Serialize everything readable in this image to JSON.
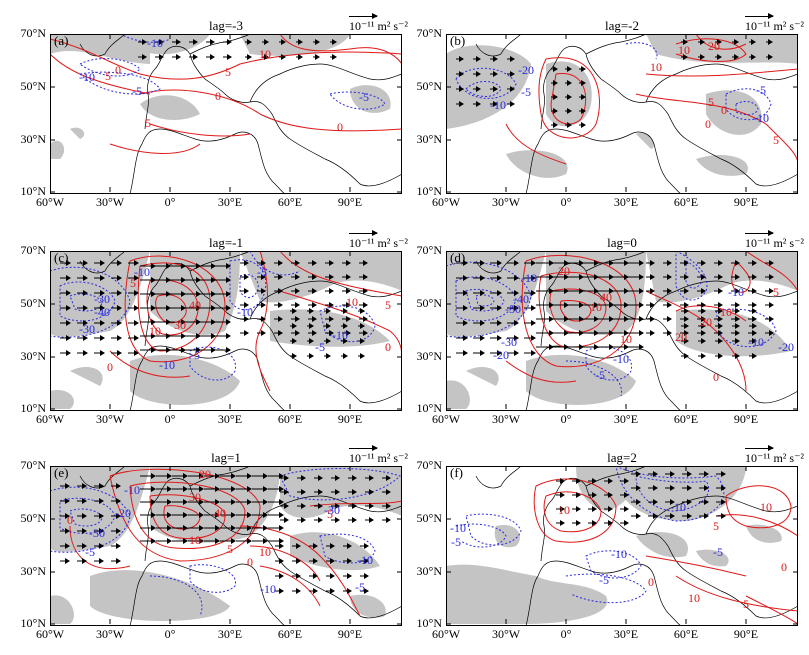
{
  "unit_label": "10⁻¹¹ m² s⁻²",
  "lat_ticks": [
    "70°N",
    "50°N",
    "30°N",
    "10°N"
  ],
  "lon_ticks": [
    "60°W",
    "30°W",
    "0°",
    "30°E",
    "60°E",
    "90°E"
  ],
  "panels": [
    {
      "label": "(a)",
      "lag": "lag=-3",
      "contours_red": [
        "0",
        "5",
        "10",
        "5",
        "0",
        "5",
        "0"
      ],
      "contours_blue": [
        "-10",
        "-10",
        "-5",
        "-5"
      ]
    },
    {
      "label": "(b)",
      "lag": "lag=-2",
      "contours_red": [
        "10",
        "20",
        "10",
        "5",
        "0",
        "0",
        "5"
      ],
      "contours_blue": [
        "-20",
        "-10",
        "-5",
        "-10",
        "-5"
      ]
    },
    {
      "label": "(c)",
      "lag": "lag=-1",
      "contours_red": [
        "5",
        "40",
        "30",
        "10",
        "0",
        "10",
        "5",
        "0"
      ],
      "contours_blue": [
        "-10",
        "-30",
        "-40",
        "-30",
        "-10",
        "-5",
        "-10",
        "-5",
        "-10",
        "-5"
      ]
    },
    {
      "label": "(d)",
      "lag": "lag=0",
      "contours_red": [
        "20",
        "40",
        "10",
        "10",
        "20",
        "20",
        "10",
        "5",
        "0"
      ],
      "contours_blue": [
        "-10",
        "-40",
        "-50",
        "-30",
        "-20",
        "-10",
        "-10",
        "-20",
        "-10",
        "-5"
      ]
    },
    {
      "label": "(e)",
      "lag": "lag=1",
      "contours_red": [
        "0",
        "20",
        "30",
        "40",
        "10",
        "5",
        "10",
        "5",
        "0"
      ],
      "contours_blue": [
        "-10",
        "-20",
        "-30",
        "-5",
        "-30",
        "-10",
        "-5",
        "-10"
      ]
    },
    {
      "label": "(f)",
      "lag": "lag=2",
      "contours_red": [
        "10",
        "10",
        "5",
        "0",
        "10",
        "5",
        "0"
      ],
      "contours_blue": [
        "-10",
        "-5",
        "-10",
        "-5",
        "-10",
        "-5"
      ]
    }
  ]
}
